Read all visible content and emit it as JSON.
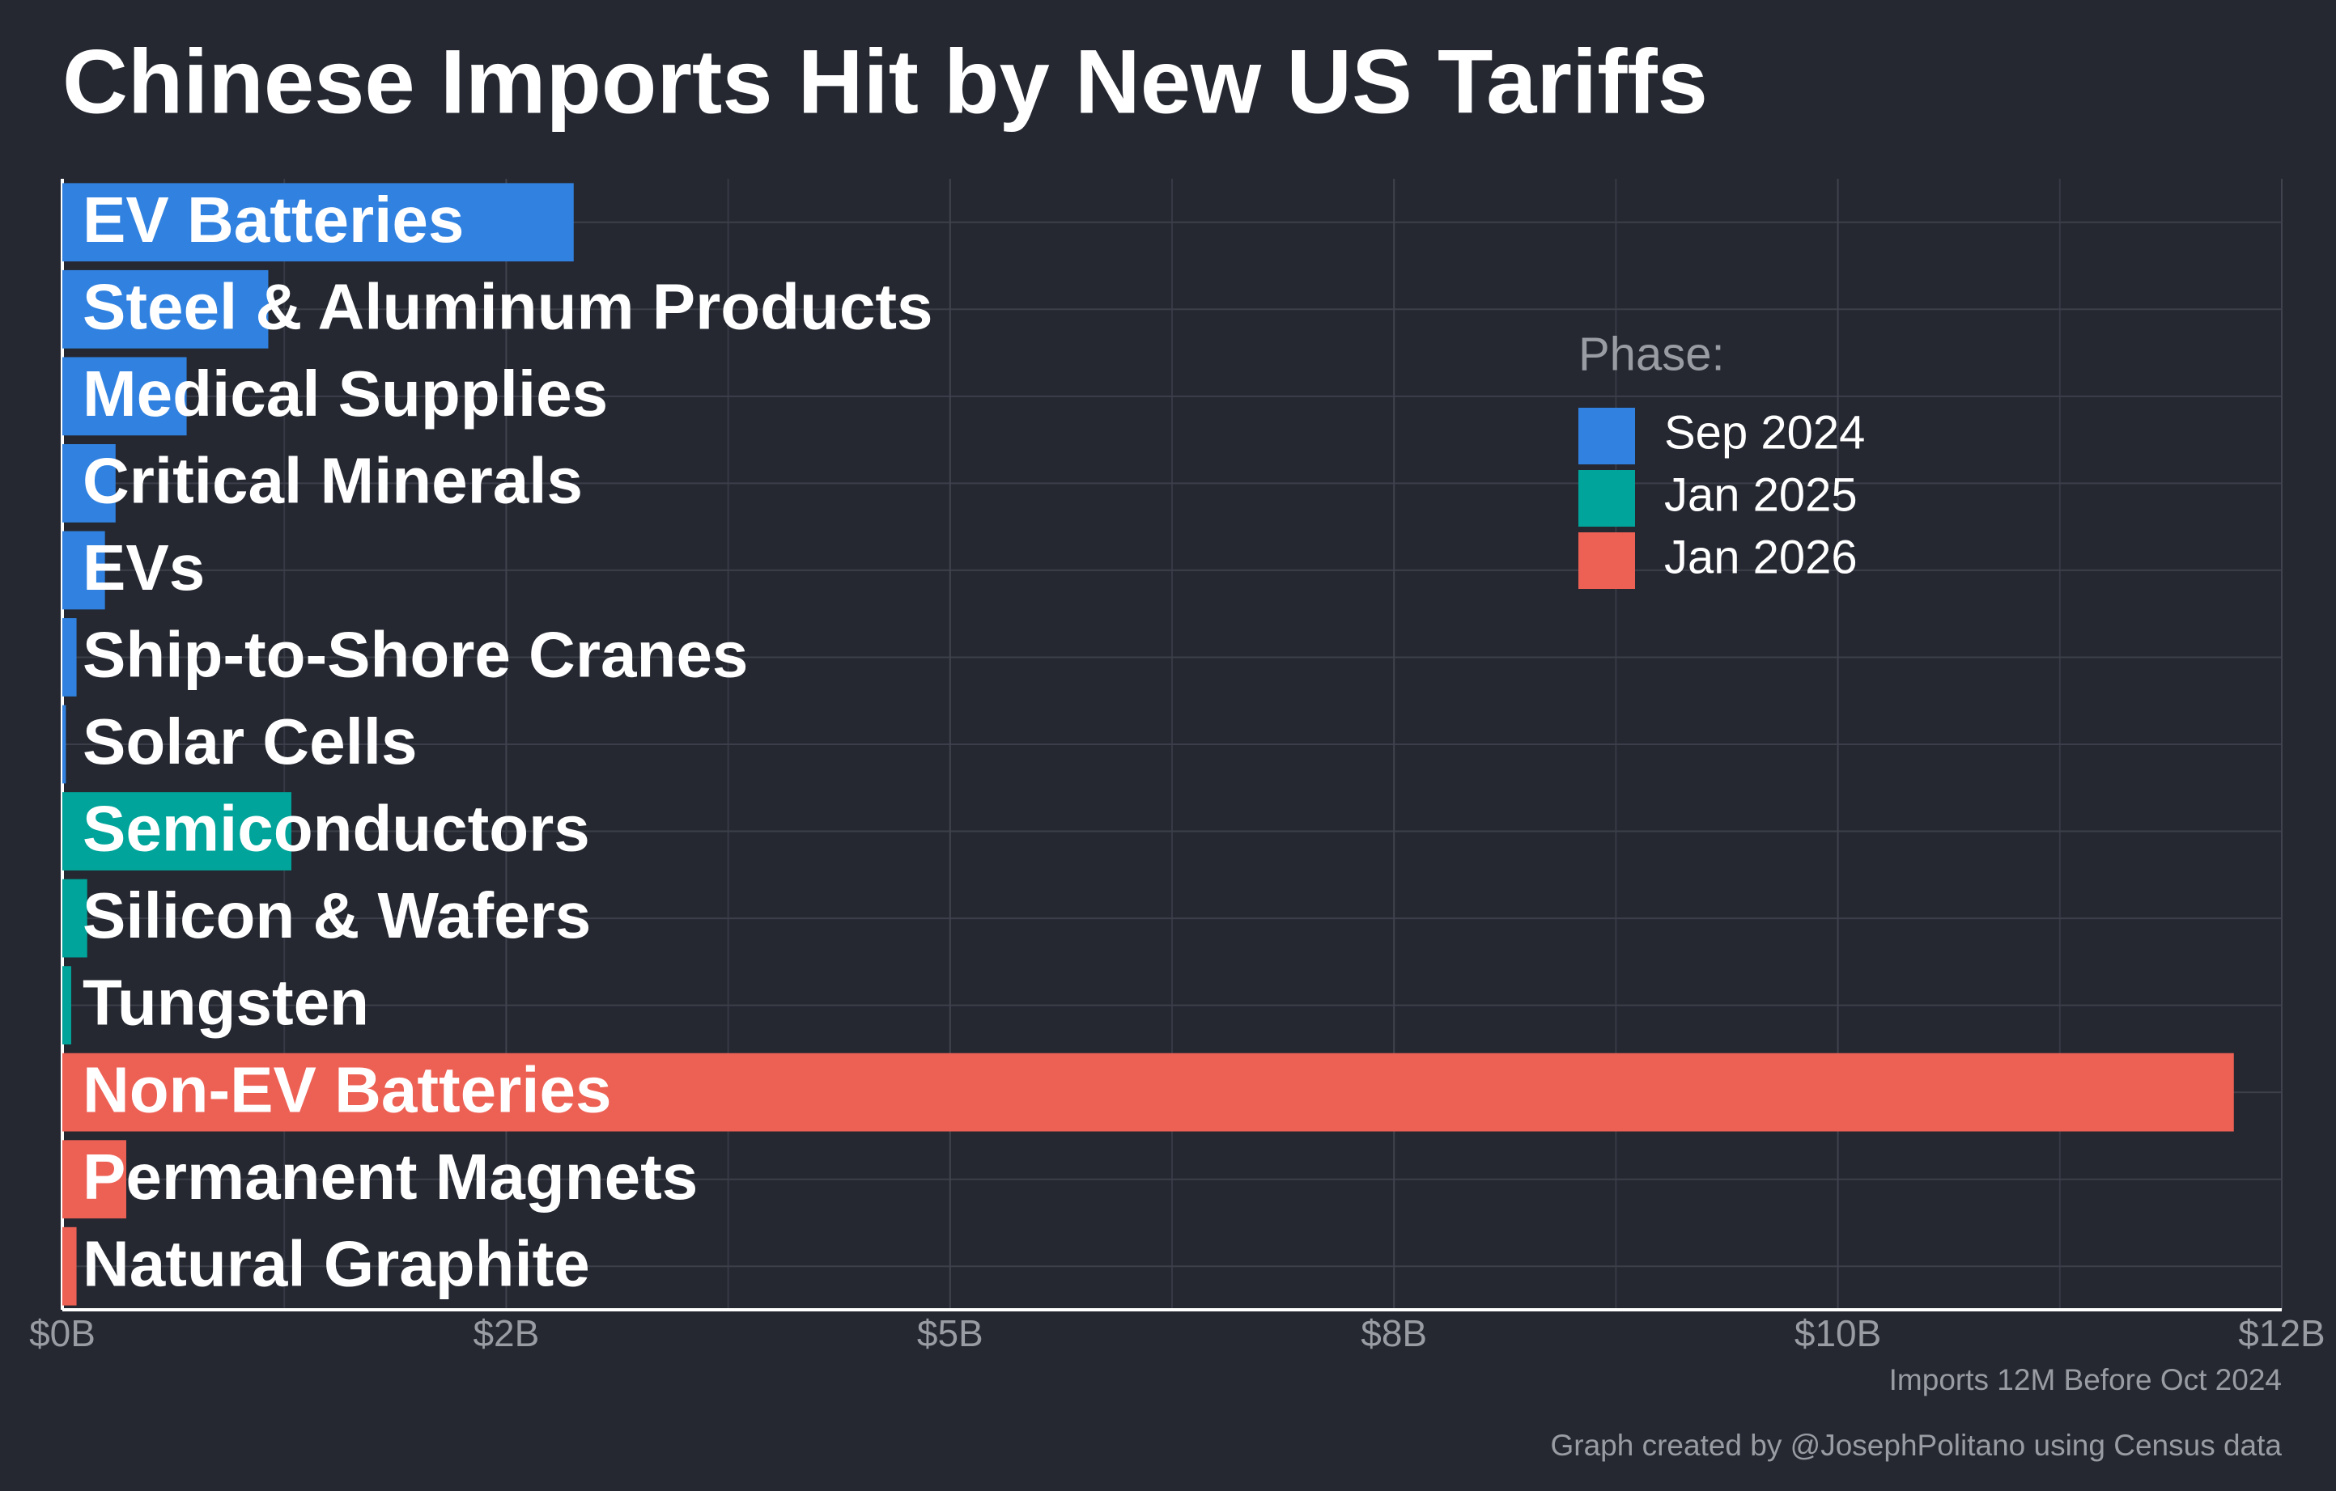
{
  "chart_data": {
    "type": "bar",
    "orientation": "horizontal",
    "title": "Chinese Imports Hit by New US Tariffs",
    "x_label": "Imports 12M Before Oct 2024",
    "caption": "Graph created by @JosephPolitano using Census data",
    "legend_title": "Phase:",
    "legend": "right",
    "grid": true,
    "categories": [
      "EV Batteries",
      "Steel & Aluminum Products",
      "Medical Supplies",
      "Critical Minerals",
      "EVs",
      "Ship-to-Shore Cranes",
      "Solar Cells",
      "Semiconductors",
      "Silicon & Wafers",
      "Tungsten",
      "Non-EV Batteries",
      "Permanent Magnets",
      "Natural Graphite"
    ],
    "series": [
      {
        "name": "Sep 2024",
        "color": "#3182e0",
        "values": [
          2.88,
          1.16,
          0.7,
          0.3,
          0.24,
          0.08,
          0.02,
          null,
          null,
          null,
          null,
          null,
          null
        ]
      },
      {
        "name": "Jan 2025",
        "color": "#00a49a",
        "values": [
          null,
          null,
          null,
          null,
          null,
          null,
          null,
          1.29,
          0.14,
          0.05,
          null,
          null,
          null
        ]
      },
      {
        "name": "Jan 2026",
        "color": "#ed6155",
        "values": [
          null,
          null,
          null,
          null,
          null,
          null,
          null,
          null,
          null,
          null,
          12.23,
          0.36,
          0.08
        ]
      }
    ],
    "xlim": [
      0,
      12.5
    ],
    "xticks": [
      {
        "value": 0,
        "label": "$0B"
      },
      {
        "value": 2.5,
        "label": "$2B"
      },
      {
        "value": 5,
        "label": "$5B"
      },
      {
        "value": 7.5,
        "label": "$8B"
      },
      {
        "value": 10,
        "label": "$10B"
      },
      {
        "value": 12.5,
        "label": "$12B"
      }
    ]
  }
}
